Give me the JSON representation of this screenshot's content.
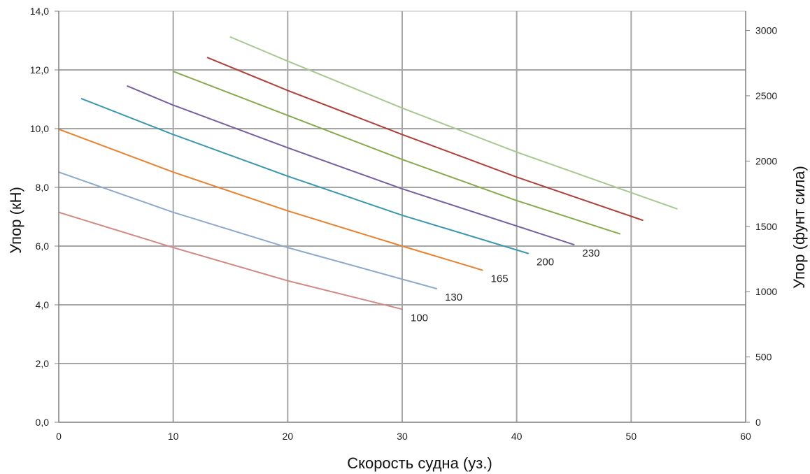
{
  "chart_data": {
    "type": "line",
    "title": "",
    "xlabel": "Скорость судна (уз.)",
    "ylabel": "Упор (кН)",
    "y2label": "Упор (фунт сила)",
    "xlim": [
      0,
      60
    ],
    "ylim": [
      0,
      14
    ],
    "y2lim": [
      0,
      3147.4
    ],
    "x_ticks": [
      "0",
      "10",
      "20",
      "30",
      "40",
      "50",
      "60"
    ],
    "x_tick_values": [
      0,
      10,
      20,
      30,
      40,
      50,
      60
    ],
    "y_ticks": [
      "0,0",
      "2,0",
      "4,0",
      "6,0",
      "8,0",
      "10,0",
      "12,0",
      "14,0"
    ],
    "y_tick_values": [
      0,
      2,
      4,
      6,
      8,
      10,
      12,
      14
    ],
    "y2_ticks": [
      "0",
      "500",
      "1000",
      "1500",
      "2000",
      "2500",
      "3000"
    ],
    "y2_tick_values": [
      0,
      500,
      1000,
      1500,
      2000,
      2500,
      3000
    ],
    "grid": true,
    "legend": "inline labels at line ends",
    "series": [
      {
        "name": "100",
        "color": "#d08a86",
        "x": [
          0,
          10,
          20,
          30
        ],
        "y": [
          7.15,
          5.95,
          4.82,
          3.85
        ]
      },
      {
        "name": "130",
        "color": "#8ea9cc",
        "x": [
          0,
          10,
          20,
          33
        ],
        "y": [
          8.52,
          7.15,
          5.95,
          4.55
        ]
      },
      {
        "name": "165",
        "color": "#e8822e",
        "x": [
          0,
          10,
          20,
          30,
          37
        ],
        "y": [
          9.98,
          8.52,
          7.2,
          6.0,
          5.18
        ]
      },
      {
        "name": "200",
        "color": "#3b98ae",
        "x": [
          2,
          10,
          20,
          30,
          41
        ],
        "y": [
          11.02,
          9.8,
          8.38,
          7.05,
          5.75
        ]
      },
      {
        "name": "230",
        "color": "#77609e",
        "x": [
          6,
          10,
          20,
          30,
          45
        ],
        "y": [
          11.45,
          10.8,
          9.35,
          7.95,
          6.05
        ]
      },
      {
        "name": "",
        "color": "#88aa4c",
        "x": [
          10,
          20,
          30,
          40,
          49
        ],
        "y": [
          11.95,
          10.45,
          8.95,
          7.55,
          6.42
        ]
      },
      {
        "name": "",
        "color": "#b0403a",
        "x": [
          13,
          20,
          30,
          40,
          51
        ],
        "y": [
          12.42,
          11.3,
          9.8,
          8.35,
          6.88
        ]
      },
      {
        "name": "",
        "color": "#a7c990",
        "x": [
          15,
          20,
          30,
          40,
          54
        ],
        "y": [
          13.12,
          12.3,
          10.7,
          9.2,
          7.27
        ]
      }
    ]
  }
}
